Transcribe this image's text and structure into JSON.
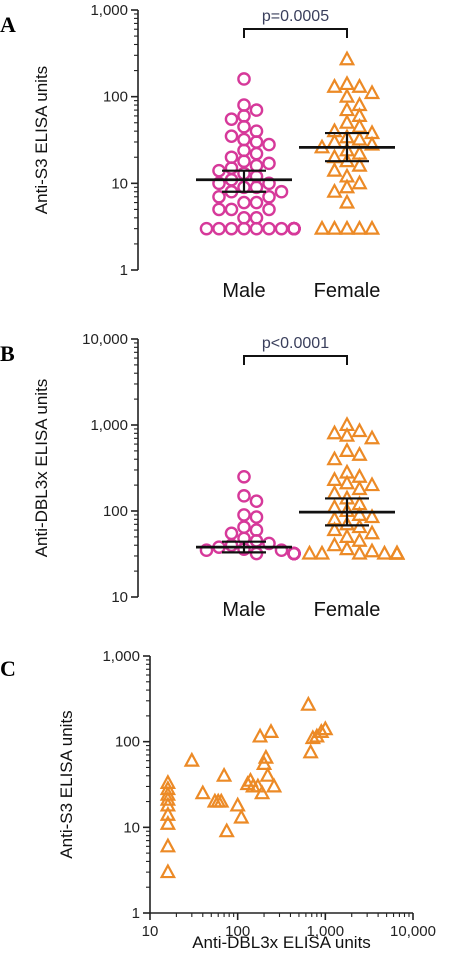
{
  "colors": {
    "male": "#d6399a",
    "female": "#ec8a26",
    "axis": "#222222",
    "sig": "#3a3f5c"
  },
  "chart_data": [
    {
      "panel": "A",
      "type": "scatter",
      "scale": "log",
      "ylabel": "Anti-S3 ELISA units",
      "ylim": [
        1,
        1000
      ],
      "yticks": [
        "1",
        "10",
        "100",
        "1,000"
      ],
      "categories": [
        "Male",
        "Female"
      ],
      "significance": "p=0.0005",
      "series": [
        {
          "category": "Male",
          "marker": "circle",
          "values": [
            160,
            70,
            80,
            60,
            55,
            45,
            40,
            35,
            32,
            30,
            28,
            24,
            22,
            20,
            18,
            17,
            16,
            15,
            14,
            13,
            12,
            11,
            10,
            10,
            9,
            9,
            8,
            8,
            7,
            7,
            6,
            6,
            5,
            5,
            5,
            4,
            4,
            3,
            3,
            3,
            3,
            3,
            3,
            3,
            3,
            3,
            3,
            3,
            3,
            3,
            3,
            3
          ],
          "center": 11,
          "ci": [
            8,
            14
          ]
        },
        {
          "category": "Female",
          "marker": "triangle",
          "values": [
            270,
            140,
            130,
            130,
            110,
            100,
            80,
            70,
            60,
            50,
            45,
            40,
            38,
            34,
            32,
            30,
            28,
            26,
            24,
            22,
            20,
            18,
            16,
            14,
            12,
            10,
            9,
            8,
            6,
            3,
            3,
            3,
            3,
            3
          ],
          "center": 26,
          "ci": [
            18,
            38
          ]
        }
      ]
    },
    {
      "panel": "B",
      "type": "scatter",
      "scale": "log",
      "ylabel": "Anti-DBL3x ELISA units",
      "ylim": [
        10,
        10000
      ],
      "yticks": [
        "10",
        "100",
        "1,000",
        "10,000"
      ],
      "categories": [
        "Male",
        "Female"
      ],
      "significance": "p<0.0001",
      "series": [
        {
          "category": "Male",
          "marker": "circle",
          "values": [
            250,
            150,
            130,
            90,
            85,
            65,
            60,
            55,
            48,
            45,
            42,
            40,
            38,
            36,
            35,
            35,
            32,
            32,
            32,
            32,
            32,
            32,
            32,
            32,
            32,
            32
          ],
          "center": 38,
          "ci": [
            33,
            44
          ]
        },
        {
          "category": "Female",
          "marker": "triangle",
          "values": [
            1000,
            850,
            800,
            750,
            700,
            500,
            450,
            400,
            280,
            250,
            230,
            210,
            200,
            180,
            160,
            140,
            120,
            110,
            100,
            90,
            85,
            80,
            70,
            65,
            60,
            55,
            50,
            45,
            40,
            36,
            34,
            32,
            32,
            32,
            32,
            32,
            32,
            32,
            32,
            32
          ],
          "center": 97,
          "ci": [
            68,
            140
          ]
        }
      ]
    },
    {
      "panel": "C",
      "type": "scatter",
      "scale": "log-log",
      "xlabel": "Anti-DBL3x ELISA units",
      "ylabel": "Anti-S3 ELISA units",
      "xlim": [
        10,
        10000
      ],
      "ylim": [
        1,
        1000
      ],
      "xticks": [
        "10",
        "100",
        "1,000",
        "10,000"
      ],
      "yticks": [
        "1",
        "10",
        "100",
        "1,000"
      ],
      "points": [
        [
          16,
          33
        ],
        [
          16,
          28
        ],
        [
          16,
          24
        ],
        [
          16,
          21
        ],
        [
          16,
          18
        ],
        [
          16,
          14
        ],
        [
          16,
          11
        ],
        [
          16,
          6
        ],
        [
          16,
          3
        ],
        [
          30,
          60
        ],
        [
          40,
          25
        ],
        [
          55,
          20
        ],
        [
          60,
          20
        ],
        [
          65,
          20
        ],
        [
          70,
          40
        ],
        [
          75,
          9
        ],
        [
          100,
          18
        ],
        [
          110,
          13
        ],
        [
          130,
          32
        ],
        [
          140,
          35
        ],
        [
          150,
          30
        ],
        [
          170,
          30
        ],
        [
          180,
          115
        ],
        [
          190,
          25
        ],
        [
          200,
          55
        ],
        [
          210,
          65
        ],
        [
          220,
          40
        ],
        [
          240,
          130
        ],
        [
          260,
          30
        ],
        [
          640,
          270
        ],
        [
          680,
          75
        ],
        [
          720,
          110
        ],
        [
          800,
          115
        ],
        [
          900,
          130
        ],
        [
          1000,
          140
        ]
      ]
    }
  ]
}
